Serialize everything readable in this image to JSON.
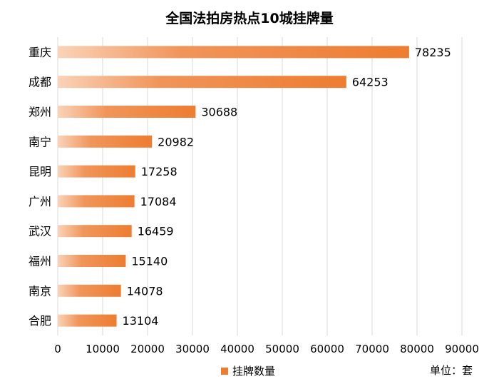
{
  "chart_data": {
    "type": "bar",
    "orientation": "horizontal",
    "title": "全国法拍房热点10城挂牌量",
    "categories": [
      "重庆",
      "成都",
      "郑州",
      "南宁",
      "昆明",
      "广州",
      "武汉",
      "福州",
      "南京",
      "合肥"
    ],
    "series": [
      {
        "name": "挂牌数量",
        "values": [
          78235,
          64253,
          30688,
          20982,
          17258,
          17084,
          16459,
          15140,
          14078,
          13104
        ]
      }
    ],
    "xlim": [
      0,
      90000
    ],
    "x_ticks": [
      0,
      10000,
      20000,
      30000,
      40000,
      50000,
      60000,
      70000,
      80000,
      90000
    ],
    "grid": "vertical",
    "legend_position": "bottom",
    "unit_label": "单位：套",
    "colors": {
      "bar": "#ED7D31",
      "bar_light": "#F8CBAD",
      "grid": "#D9D9D9"
    }
  }
}
